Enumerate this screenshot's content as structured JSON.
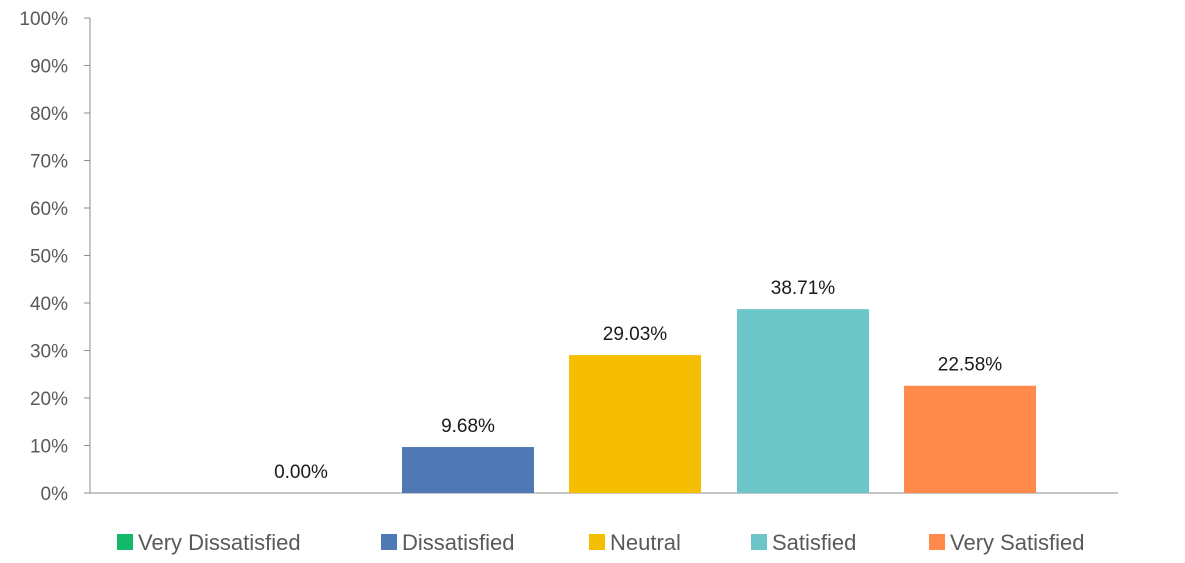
{
  "chart_data": {
    "type": "bar",
    "title": "",
    "xlabel": "",
    "ylabel": "",
    "ylim": [
      0,
      100
    ],
    "yticks": [
      0,
      10,
      20,
      30,
      40,
      50,
      60,
      70,
      80,
      90,
      100
    ],
    "ytick_labels": [
      "0%",
      "10%",
      "20%",
      "30%",
      "40%",
      "50%",
      "60%",
      "70%",
      "80%",
      "90%",
      "100%"
    ],
    "categories": [
      "Very Dissatisfied",
      "Dissatisfied",
      "Neutral",
      "Satisfied",
      "Very Satisfied"
    ],
    "values": [
      0.0,
      9.68,
      29.03,
      38.71,
      22.58
    ],
    "value_labels": [
      "0.00%",
      "9.68%",
      "29.03%",
      "38.71%",
      "22.58%"
    ],
    "colors": [
      "#14b86a",
      "#4e79b4",
      "#f6be00",
      "#6cc6c8",
      "#ff8a4c"
    ],
    "legend": {
      "position": "bottom",
      "entries": [
        "Very Dissatisfied",
        "Dissatisfied",
        "Neutral",
        "Satisfied",
        "Very Satisfied"
      ]
    },
    "grid": false,
    "axis_color": "#8c8c8c"
  }
}
